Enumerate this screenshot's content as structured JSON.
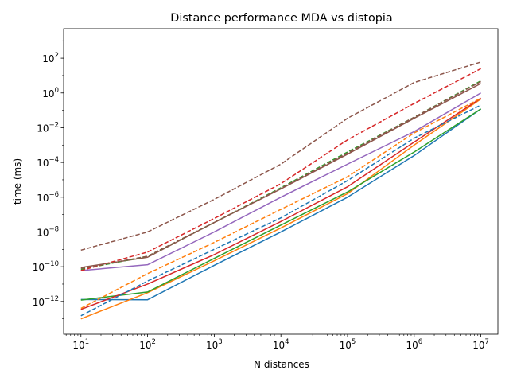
{
  "chart_data": {
    "type": "line",
    "title": "Distance performance MDA vs distopia",
    "xlabel": "N distances",
    "ylabel": "time (ms)",
    "xscale": "log",
    "yscale": "log",
    "xlim": [
      5.5,
      18000000
    ],
    "ylim": [
      1.3e-14,
      5000
    ],
    "grid": false,
    "legend": "none",
    "x": [
      10,
      100,
      1000,
      10000,
      100000,
      1000000,
      10000000
    ],
    "x_ticks": [
      {
        "value": 10,
        "base": "10",
        "exp": "1"
      },
      {
        "value": 100,
        "base": "10",
        "exp": "2"
      },
      {
        "value": 1000,
        "base": "10",
        "exp": "3"
      },
      {
        "value": 10000,
        "base": "10",
        "exp": "4"
      },
      {
        "value": 100000,
        "base": "10",
        "exp": "5"
      },
      {
        "value": 1000000,
        "base": "10",
        "exp": "6"
      },
      {
        "value": 10000000,
        "base": "10",
        "exp": "7"
      }
    ],
    "y_ticks": [
      {
        "value": 1e-12,
        "base": "10",
        "exp": "−12"
      },
      {
        "value": 1e-10,
        "base": "10",
        "exp": "−10"
      },
      {
        "value": 1e-08,
        "base": "10",
        "exp": "−8"
      },
      {
        "value": 1e-06,
        "base": "10",
        "exp": "−6"
      },
      {
        "value": 0.0001,
        "base": "10",
        "exp": "−4"
      },
      {
        "value": 0.01,
        "base": "10",
        "exp": "−2"
      },
      {
        "value": 1,
        "base": "10",
        "exp": "0"
      },
      {
        "value": 100,
        "base": "10",
        "exp": "2"
      }
    ],
    "series": [
      {
        "color": "#1f77b4",
        "dash": "solid",
        "values": [
          1.3e-12,
          1.25e-12,
          1.2e-10,
          1e-08,
          1e-06,
          0.00025,
          0.12
        ]
      },
      {
        "color": "#ff7f0e",
        "dash": "solid",
        "values": [
          1e-13,
          3.2e-12,
          2.2e-10,
          1.7e-08,
          1.6e-06,
          0.001,
          0.45
        ]
      },
      {
        "color": "#2ca02c",
        "dash": "solid",
        "values": [
          1.2e-12,
          3.5e-12,
          3e-10,
          2.5e-08,
          2e-06,
          0.0004,
          0.12
        ]
      },
      {
        "color": "#d62728",
        "dash": "solid",
        "values": [
          3.5e-13,
          1e-11,
          5e-10,
          4e-08,
          4e-06,
          0.0015,
          0.5
        ]
      },
      {
        "color": "#9467bd",
        "dash": "solid",
        "values": [
          6e-11,
          1.3e-10,
          1e-08,
          1e-06,
          8e-05,
          0.006,
          1.0
        ]
      },
      {
        "color": "#8c564b",
        "dash": "solid",
        "values": [
          9e-11,
          3.5e-10,
          3.5e-08,
          3e-06,
          0.0003,
          0.035,
          3.5
        ]
      },
      {
        "color": "#1f77b4",
        "dash": "dashed",
        "values": [
          1.5e-13,
          1.5e-11,
          1e-09,
          6.5e-08,
          9e-06,
          0.0025,
          0.2
        ]
      },
      {
        "color": "#ff7f0e",
        "dash": "dashed",
        "values": [
          4e-13,
          4e-11,
          2.5e-09,
          2e-07,
          1.5e-05,
          0.005,
          0.5
        ]
      },
      {
        "color": "#2ca02c",
        "dash": "dashed",
        "values": [
          7e-11,
          4e-10,
          3.5e-08,
          3.5e-06,
          0.0004,
          0.04,
          5.0
        ]
      },
      {
        "color": "#d62728",
        "dash": "dashed",
        "values": [
          6e-11,
          7e-10,
          6e-08,
          6e-06,
          0.002,
          0.25,
          25
        ]
      },
      {
        "color": "#8c564b",
        "dash": "dashed",
        "values": [
          8e-11,
          4e-10,
          3.5e-08,
          3.2e-06,
          0.00035,
          0.04,
          4.5
        ]
      },
      {
        "color": "#8c564b",
        "dash": "dashed",
        "values": [
          9e-10,
          1e-08,
          7.5e-07,
          8e-05,
          0.035,
          4.0,
          60
        ]
      }
    ]
  }
}
